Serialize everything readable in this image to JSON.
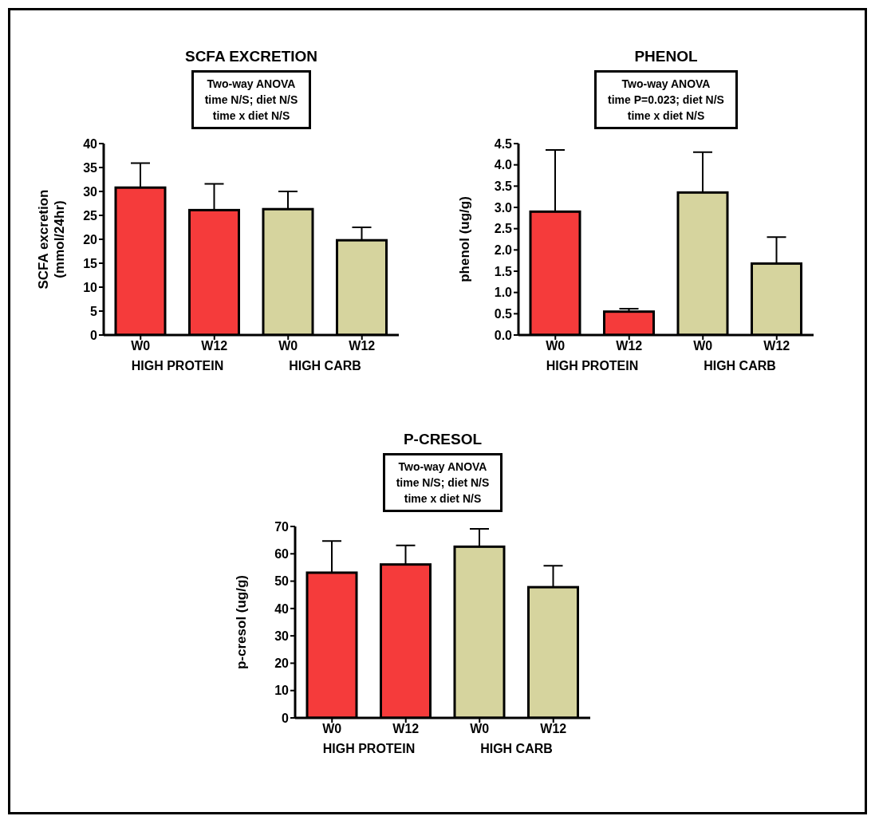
{
  "chart_data": [
    {
      "type": "bar",
      "title": "SCFA EXCRETION",
      "ylabel": "SCFA excretion\n(mmol/24hr)",
      "categories": [
        "W0",
        "W12",
        "W0",
        "W12"
      ],
      "values": [
        30.8,
        26.1,
        26.3,
        19.8
      ],
      "colors": [
        "#f53b3b",
        "#f53b3b",
        "#d6d49e",
        "#d6d49e"
      ],
      "errors": [
        [
          30.8,
          35.9
        ],
        [
          26.1,
          31.6
        ],
        [
          26.3,
          30.0
        ],
        [
          19.8,
          22.5
        ]
      ],
      "ylim": [
        0,
        40
      ],
      "yticks": [
        0,
        5,
        10,
        15,
        20,
        25,
        30,
        35,
        40
      ],
      "grid": false,
      "annotations": [
        "Two-way ANOVA\ntime N/S; diet N/S\ntime x diet N/S",
        "HIGH PROTEIN",
        "HIGH CARB"
      ]
    },
    {
      "type": "bar",
      "title": "PHENOL",
      "ylabel": "phenol (ug/g)",
      "categories": [
        "W0",
        "W12",
        "W0",
        "W12"
      ],
      "values": [
        2.9,
        0.55,
        3.35,
        1.68
      ],
      "colors": [
        "#f53b3b",
        "#f53b3b",
        "#d6d49e",
        "#d6d49e"
      ],
      "errors": [
        [
          2.9,
          4.35
        ],
        [
          0.55,
          0.62
        ],
        [
          3.35,
          4.3
        ],
        [
          1.68,
          2.3
        ]
      ],
      "ylim": [
        0,
        4.5
      ],
      "yticks": [
        {
          "value": 0,
          "label": "0.0"
        },
        0.5,
        {
          "value": 1,
          "label": "1.0"
        },
        1.5,
        {
          "value": 2,
          "label": "2.0"
        },
        2.5,
        {
          "value": 3,
          "label": "3.0"
        },
        3.5,
        {
          "value": 4,
          "label": "4.0"
        },
        4.5
      ],
      "grid": false,
      "annotations": [
        "Two-way ANOVA\ntime P=0.023; diet N/S\ntime x diet N/S",
        "HIGH PROTEIN",
        "HIGH CARB"
      ]
    },
    {
      "type": "bar",
      "title": "P-CRESOL",
      "ylabel": "p-cresol (ug/g)",
      "categories": [
        "W0",
        "W12",
        "W0",
        "W12"
      ],
      "values": [
        53.1,
        56.1,
        62.6,
        47.8
      ],
      "colors": [
        "#f53b3b",
        "#f53b3b",
        "#d6d49e",
        "#d6d49e"
      ],
      "errors": [
        [
          53.1,
          64.7
        ],
        [
          56.1,
          63.1
        ],
        [
          62.6,
          69.1
        ],
        [
          47.8,
          55.6
        ]
      ],
      "ylim": [
        0,
        70
      ],
      "yticks": [
        0,
        10,
        20,
        30,
        40,
        50,
        60,
        70
      ],
      "grid": false,
      "annotations": [
        "Two-way ANOVA\ntime N/S; diet N/S\ntime x diet N/S",
        "HIGH PROTEIN",
        "HIGH CARB"
      ]
    }
  ]
}
